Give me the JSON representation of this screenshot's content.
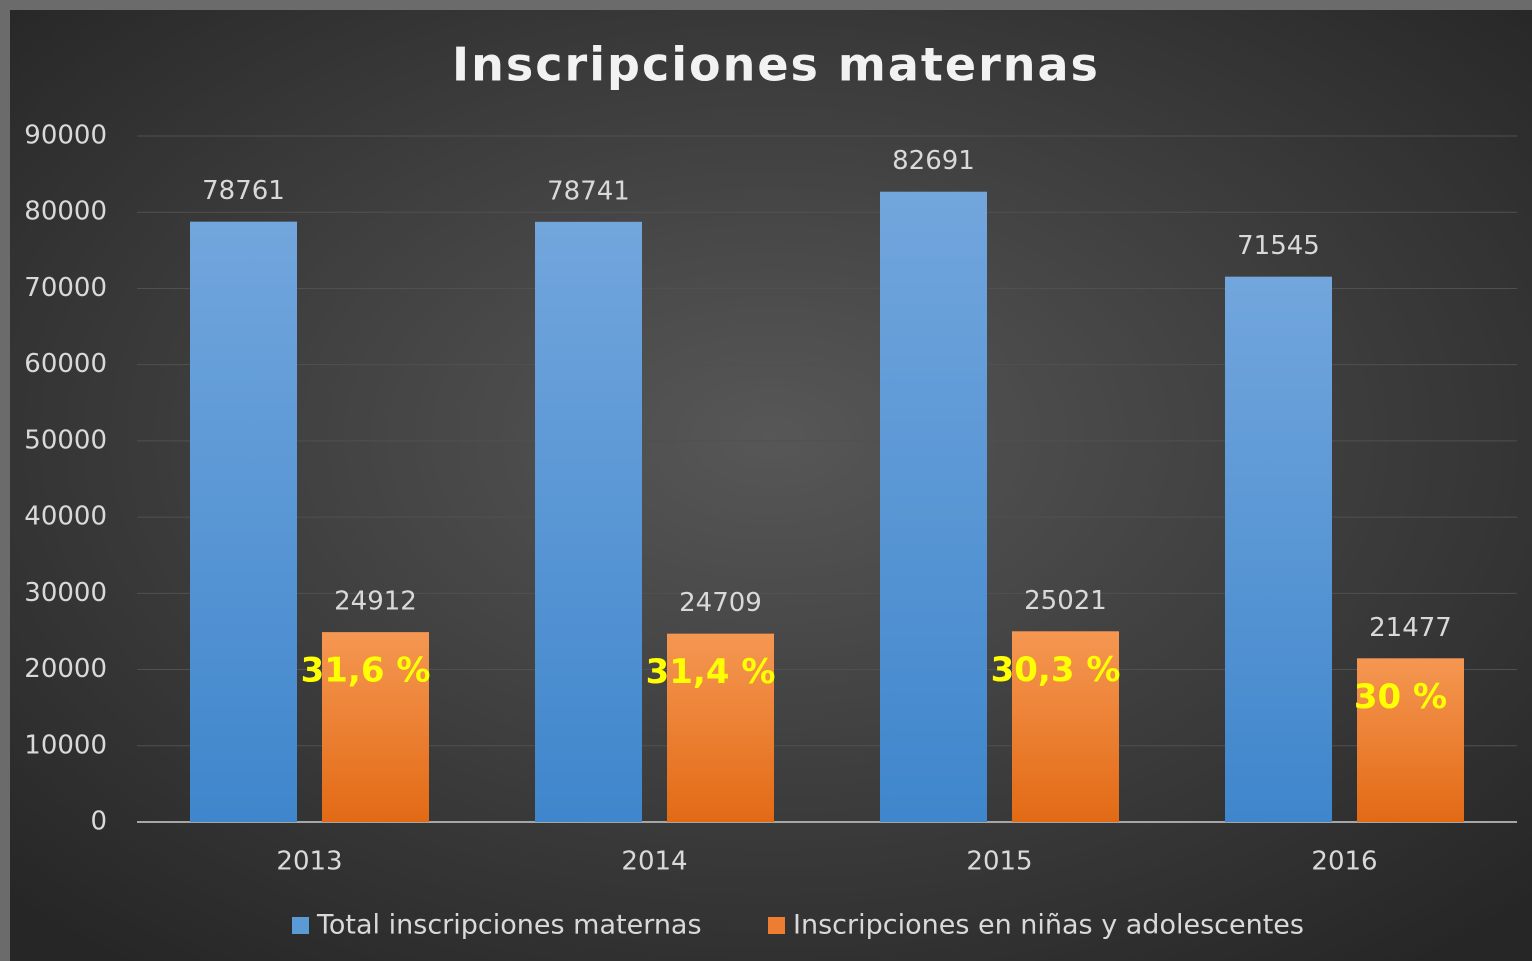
{
  "chart_data": {
    "type": "bar",
    "title": "Inscripciones maternas",
    "categories": [
      "2013",
      "2014",
      "2015",
      "2016"
    ],
    "series": [
      {
        "name": "Total inscripciones maternas",
        "color": "#5b9bd5",
        "values": [
          78761,
          78741,
          82691,
          71545
        ]
      },
      {
        "name": "Inscripciones en niñas y adolescentes",
        "color": "#ed7d31",
        "values": [
          24912,
          24709,
          25021,
          21477
        ]
      }
    ],
    "annotations": [
      "31,6 %",
      "31,4 %",
      "30,3 %",
      "30 %"
    ],
    "ylim": [
      0,
      90000
    ],
    "yticks": [
      0,
      10000,
      20000,
      30000,
      40000,
      50000,
      60000,
      70000,
      80000,
      90000
    ],
    "grid": true,
    "legend": "bottom"
  }
}
